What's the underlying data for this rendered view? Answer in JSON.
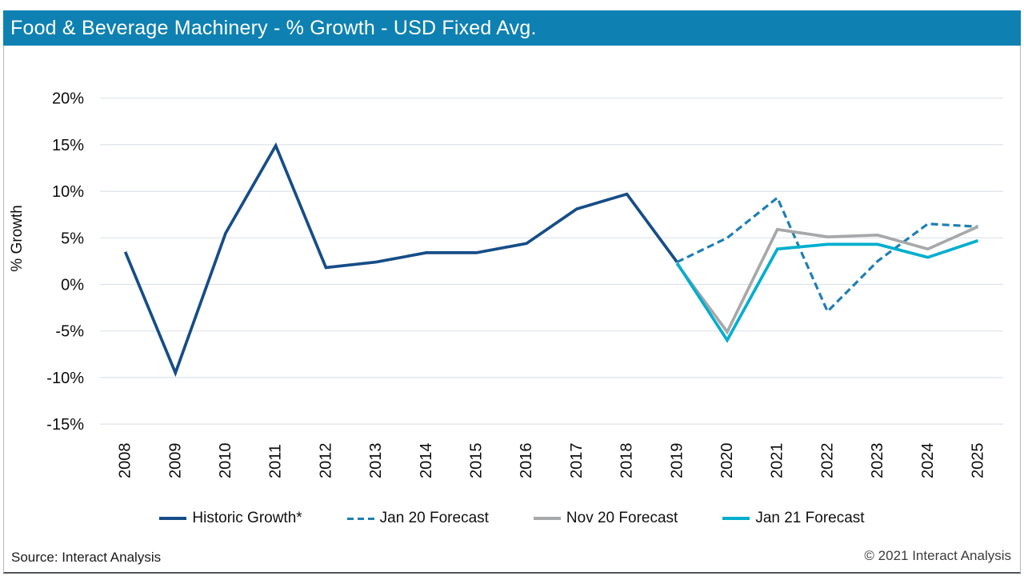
{
  "header": {
    "title": "Food & Beverage Machinery - % Growth - USD Fixed Avg.",
    "background_color": "#0E81B2",
    "text_color": "#FFFFFF"
  },
  "footer": {
    "source": "Source: Interact Analysis",
    "copyright": "© 2021 Interact Analysis"
  },
  "chart_data": {
    "type": "line",
    "title": "Food & Beverage Machinery - % Growth - USD Fixed Avg.",
    "xlabel": "",
    "ylabel": "% Growth",
    "categories": [
      "2008",
      "2009",
      "2010",
      "2011",
      "2012",
      "2013",
      "2014",
      "2015",
      "2016",
      "2017",
      "2018",
      "2019",
      "2020",
      "2021",
      "2022",
      "2023",
      "2024",
      "2025"
    ],
    "ylim": [
      -15,
      20
    ],
    "ytick_step": 5,
    "ytick_suffix": "%",
    "grid": true,
    "gridline_color": "#DDE3EA",
    "legend_position": "bottom",
    "series": [
      {
        "name": "Historic Growth*",
        "color": "#164D87",
        "style": "solid",
        "years": [
          2008,
          2009,
          2010,
          2011,
          2012,
          2013,
          2014,
          2015,
          2016,
          2017,
          2018,
          2019
        ],
        "values": [
          3.5,
          -9.5,
          5.5,
          14.9,
          1.8,
          2.4,
          3.4,
          3.4,
          4.4,
          8.1,
          9.7,
          2.4
        ]
      },
      {
        "name": "Jan 20 Forecast",
        "color": "#1F7EB3",
        "style": "dashed",
        "years": [
          2019,
          2020,
          2021,
          2022,
          2023,
          2024,
          2025
        ],
        "values": [
          2.4,
          5.0,
          9.3,
          -2.9,
          2.5,
          6.5,
          6.2
        ]
      },
      {
        "name": "Nov 20 Forecast",
        "color": "#A7A8AA",
        "style": "solid",
        "years": [
          2019,
          2020,
          2021,
          2022,
          2023,
          2024,
          2025
        ],
        "values": [
          2.2,
          -5.1,
          5.9,
          5.1,
          5.3,
          3.8,
          6.2
        ]
      },
      {
        "name": "Jan 21 Forecast",
        "color": "#00AECE",
        "style": "solid",
        "years": [
          2019,
          2020,
          2021,
          2022,
          2023,
          2024,
          2025
        ],
        "values": [
          2.3,
          -6.0,
          3.8,
          4.3,
          4.3,
          2.9,
          4.7
        ]
      }
    ]
  }
}
